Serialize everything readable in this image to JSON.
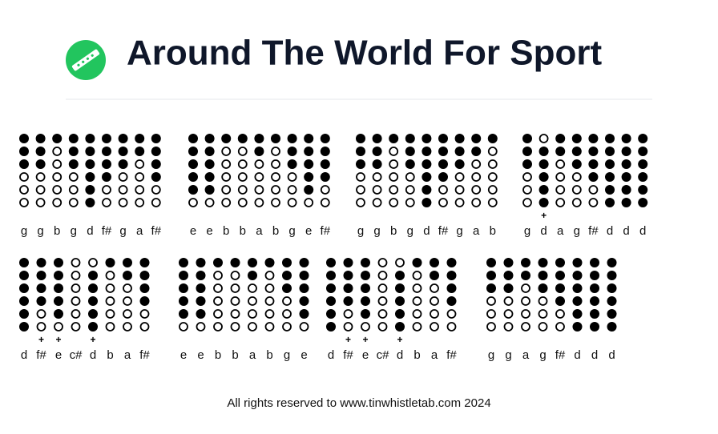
{
  "header": {
    "title": "Around The World For Sport"
  },
  "rows": [
    {
      "groups": [
        {
          "notes": [
            {
              "note": "g",
              "holes": [
                1,
                1,
                1,
                0,
                0,
                0
              ]
            },
            {
              "note": "g",
              "holes": [
                1,
                1,
                1,
                0,
                0,
                0
              ]
            },
            {
              "note": "b",
              "holes": [
                1,
                0,
                0,
                0,
                0,
                0
              ]
            },
            {
              "note": "g",
              "holes": [
                1,
                1,
                1,
                0,
                0,
                0
              ]
            },
            {
              "note": "d",
              "holes": [
                1,
                1,
                1,
                1,
                1,
                1
              ]
            },
            {
              "note": "f#",
              "holes": [
                1,
                1,
                1,
                1,
                0,
                0
              ]
            },
            {
              "note": "g",
              "holes": [
                1,
                1,
                1,
                0,
                0,
                0
              ]
            },
            {
              "note": "a",
              "holes": [
                1,
                1,
                0,
                0,
                0,
                0
              ]
            },
            {
              "note": "f#",
              "holes": [
                1,
                1,
                1,
                1,
                0,
                0
              ]
            }
          ]
        },
        {
          "notes": [
            {
              "note": "e",
              "holes": [
                1,
                1,
                1,
                1,
                1,
                0
              ]
            },
            {
              "note": "e",
              "holes": [
                1,
                1,
                1,
                1,
                1,
                0
              ]
            },
            {
              "note": "b",
              "holes": [
                1,
                0,
                0,
                0,
                0,
                0
              ]
            },
            {
              "note": "b",
              "holes": [
                1,
                0,
                0,
                0,
                0,
                0
              ]
            },
            {
              "note": "a",
              "holes": [
                1,
                1,
                0,
                0,
                0,
                0
              ]
            },
            {
              "note": "b",
              "holes": [
                1,
                0,
                0,
                0,
                0,
                0
              ]
            },
            {
              "note": "g",
              "holes": [
                1,
                1,
                1,
                0,
                0,
                0
              ]
            },
            {
              "note": "e",
              "holes": [
                1,
                1,
                1,
                1,
                1,
                0
              ]
            },
            {
              "note": "f#",
              "holes": [
                1,
                1,
                1,
                1,
                0,
                0
              ]
            }
          ]
        },
        {
          "notes": [
            {
              "note": "g",
              "holes": [
                1,
                1,
                1,
                0,
                0,
                0
              ]
            },
            {
              "note": "g",
              "holes": [
                1,
                1,
                1,
                0,
                0,
                0
              ]
            },
            {
              "note": "b",
              "holes": [
                1,
                0,
                0,
                0,
                0,
                0
              ]
            },
            {
              "note": "g",
              "holes": [
                1,
                1,
                1,
                0,
                0,
                0
              ]
            },
            {
              "note": "d",
              "holes": [
                1,
                1,
                1,
                1,
                1,
                1
              ]
            },
            {
              "note": "f#",
              "holes": [
                1,
                1,
                1,
                1,
                0,
                0
              ]
            },
            {
              "note": "g",
              "holes": [
                1,
                1,
                1,
                0,
                0,
                0
              ]
            },
            {
              "note": "a",
              "holes": [
                1,
                1,
                0,
                0,
                0,
                0
              ]
            },
            {
              "note": "b",
              "holes": [
                1,
                0,
                0,
                0,
                0,
                0
              ]
            }
          ]
        },
        {
          "notes": [
            {
              "note": "g",
              "holes": [
                1,
                1,
                1,
                0,
                0,
                0
              ]
            },
            {
              "note": "d",
              "holes": [
                0,
                1,
                1,
                1,
                1,
                1
              ],
              "octave": "+"
            },
            {
              "note": "a",
              "holes": [
                1,
                1,
                0,
                0,
                0,
                0
              ]
            },
            {
              "note": "g",
              "holes": [
                1,
                1,
                1,
                0,
                0,
                0
              ]
            },
            {
              "note": "f#",
              "holes": [
                1,
                1,
                1,
                1,
                0,
                0
              ]
            },
            {
              "note": "d",
              "holes": [
                1,
                1,
                1,
                1,
                1,
                1
              ]
            },
            {
              "note": "d",
              "holes": [
                1,
                1,
                1,
                1,
                1,
                1
              ]
            },
            {
              "note": "d",
              "holes": [
                1,
                1,
                1,
                1,
                1,
                1
              ]
            }
          ]
        }
      ]
    },
    {
      "groups": [
        {
          "notes": [
            {
              "note": "d",
              "holes": [
                1,
                1,
                1,
                1,
                1,
                1
              ]
            },
            {
              "note": "f#",
              "holes": [
                1,
                1,
                1,
                1,
                0,
                0
              ],
              "octave": "+"
            },
            {
              "note": "e",
              "holes": [
                1,
                1,
                1,
                1,
                1,
                0
              ],
              "octave": "+"
            },
            {
              "note": "c#",
              "holes": [
                0,
                0,
                0,
                0,
                0,
                0
              ]
            },
            {
              "note": "d",
              "holes": [
                0,
                1,
                1,
                1,
                1,
                1
              ],
              "octave": "+"
            },
            {
              "note": "b",
              "holes": [
                1,
                0,
                0,
                0,
                0,
                0
              ]
            },
            {
              "note": "a",
              "holes": [
                1,
                1,
                0,
                0,
                0,
                0
              ]
            },
            {
              "note": "f#",
              "holes": [
                1,
                1,
                1,
                1,
                0,
                0
              ]
            }
          ]
        },
        {
          "notes": [
            {
              "note": "e",
              "holes": [
                1,
                1,
                1,
                1,
                1,
                0
              ]
            },
            {
              "note": "e",
              "holes": [
                1,
                1,
                1,
                1,
                1,
                0
              ]
            },
            {
              "note": "b",
              "holes": [
                1,
                0,
                0,
                0,
                0,
                0
              ]
            },
            {
              "note": "b",
              "holes": [
                1,
                0,
                0,
                0,
                0,
                0
              ]
            },
            {
              "note": "a",
              "holes": [
                1,
                1,
                0,
                0,
                0,
                0
              ]
            },
            {
              "note": "b",
              "holes": [
                1,
                0,
                0,
                0,
                0,
                0
              ]
            },
            {
              "note": "g",
              "holes": [
                1,
                1,
                1,
                0,
                0,
                0
              ]
            },
            {
              "note": "e",
              "holes": [
                1,
                1,
                1,
                1,
                1,
                0
              ]
            }
          ]
        },
        {
          "notes": [
            {
              "note": "d",
              "holes": [
                1,
                1,
                1,
                1,
                1,
                1
              ]
            },
            {
              "note": "f#",
              "holes": [
                1,
                1,
                1,
                1,
                0,
                0
              ],
              "octave": "+"
            },
            {
              "note": "e",
              "holes": [
                1,
                1,
                1,
                1,
                1,
                0
              ],
              "octave": "+"
            },
            {
              "note": "c#",
              "holes": [
                0,
                0,
                0,
                0,
                0,
                0
              ]
            },
            {
              "note": "d",
              "holes": [
                0,
                1,
                1,
                1,
                1,
                1
              ],
              "octave": "+"
            },
            {
              "note": "b",
              "holes": [
                1,
                0,
                0,
                0,
                0,
                0
              ]
            },
            {
              "note": "a",
              "holes": [
                1,
                1,
                0,
                0,
                0,
                0
              ]
            },
            {
              "note": "f#",
              "holes": [
                1,
                1,
                1,
                1,
                0,
                0
              ]
            }
          ]
        },
        {
          "notes": [
            {
              "note": "g",
              "holes": [
                1,
                1,
                1,
                0,
                0,
                0
              ]
            },
            {
              "note": "g",
              "holes": [
                1,
                1,
                1,
                0,
                0,
                0
              ]
            },
            {
              "note": "a",
              "holes": [
                1,
                1,
                0,
                0,
                0,
                0
              ]
            },
            {
              "note": "g",
              "holes": [
                1,
                1,
                1,
                0,
                0,
                0
              ]
            },
            {
              "note": "f#",
              "holes": [
                1,
                1,
                1,
                1,
                0,
                0
              ]
            },
            {
              "note": "d",
              "holes": [
                1,
                1,
                1,
                1,
                1,
                1
              ]
            },
            {
              "note": "d",
              "holes": [
                1,
                1,
                1,
                1,
                1,
                1
              ]
            },
            {
              "note": "d",
              "holes": [
                1,
                1,
                1,
                1,
                1,
                1
              ]
            }
          ]
        }
      ]
    }
  ],
  "footer": {
    "text": "All rights reserved to www.tinwhistletab.com 2024"
  }
}
